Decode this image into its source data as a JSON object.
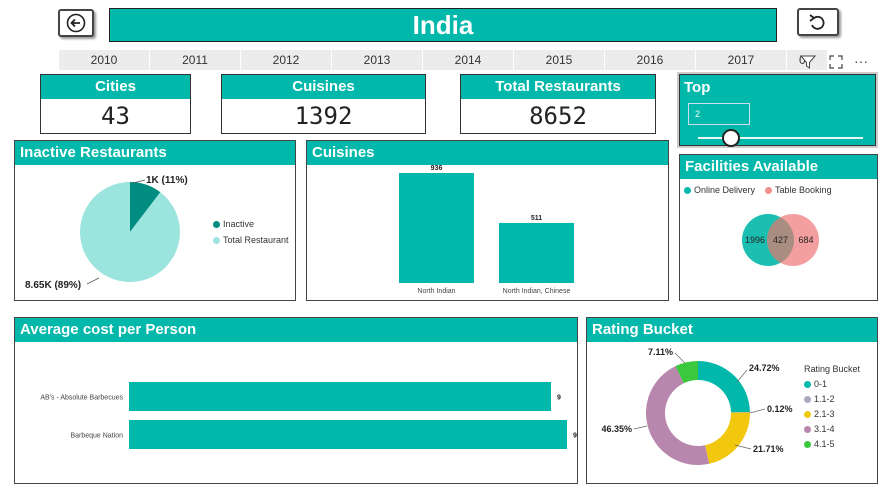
{
  "header": {
    "title": "India"
  },
  "icons": {
    "back": "back-arrow-icon",
    "reset": "undo-icon",
    "filter": "filter-icon",
    "focus": "focus-mode-icon",
    "more": "more-options-icon"
  },
  "years": [
    "2010",
    "2011",
    "2012",
    "2013",
    "2014",
    "2015",
    "2016",
    "2017"
  ],
  "year_overflow": "0",
  "more_label": "···",
  "kpis": {
    "cities": {
      "label": "Cities",
      "value": "43"
    },
    "cuisines": {
      "label": "Cuisines",
      "value": "1392"
    },
    "restaurants": {
      "label": "Total Restaurants",
      "value": "8652"
    }
  },
  "top": {
    "label": "Top",
    "value": "2",
    "slider_fraction": 0.2
  },
  "inactive": {
    "title": "Inactive Restaurants",
    "legend": [
      "Inactive",
      "Total Restaurant"
    ],
    "labels": {
      "inactive": "1K (11%)",
      "total": "8.65K (89%)"
    }
  },
  "cuisines_panel": {
    "title": "Cuisines"
  },
  "facilities": {
    "title": "Facilities Available",
    "legend": [
      "Online Delivery",
      "Table Booking"
    ],
    "values": {
      "left": "1996",
      "mid": "427",
      "right": "684"
    }
  },
  "avg_cost": {
    "title": "Average cost per Person"
  },
  "rating": {
    "title": "Rating Bucket",
    "legend_title": "Rating Bucket",
    "legend": [
      "0-1",
      "1.1-2",
      "2.1-3",
      "3.1-4",
      "4.1-5"
    ]
  },
  "colors": {
    "teal": "#01b8aa",
    "dark_teal": "#008c80",
    "light_teal": "#9ce4de",
    "pink": "#f28e8e",
    "yellow": "#f2c80f",
    "mauve": "#b887ad",
    "gray": "#a8a8c0",
    "green": "#3cc83c"
  },
  "chart_data": [
    {
      "type": "pie",
      "title": "Inactive Restaurants",
      "categories": [
        "Inactive",
        "Total Restaurant"
      ],
      "values": [
        1000,
        8650
      ],
      "labels": [
        "1K (11%)",
        "8.65K (89%)"
      ]
    },
    {
      "type": "bar",
      "title": "Cuisines",
      "categories": [
        "North Indian",
        "North Indian, Chinese"
      ],
      "values": [
        936,
        511
      ],
      "data_labels": [
        "936",
        "511"
      ]
    },
    {
      "type": "bar",
      "orientation": "horizontal",
      "title": "Average cost per Person",
      "categories": [
        "AB's - Absolute Barbecues",
        "Barbeque Nation"
      ],
      "values": [
        9,
        9
      ],
      "data_labels": [
        "9",
        "9"
      ]
    },
    {
      "type": "pie",
      "subtype": "donut",
      "title": "Rating Bucket",
      "categories": [
        "0-1",
        "1.1-2",
        "2.1-3",
        "3.1-4",
        "4.1-5"
      ],
      "values": [
        24.72,
        0.12,
        21.71,
        46.35,
        7.11
      ],
      "labels": [
        "24.72%",
        "0.12%",
        "21.71%",
        "46.35%",
        "7.11%"
      ]
    }
  ]
}
